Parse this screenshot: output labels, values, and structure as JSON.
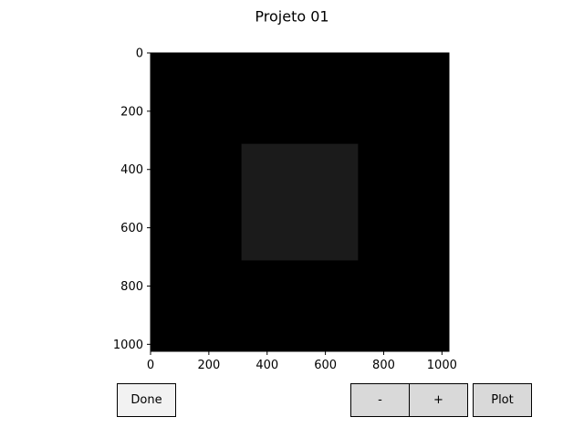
{
  "figure": {
    "title": "Projeto 01"
  },
  "chart_data": {
    "type": "heatmap",
    "title": "Projeto 01",
    "xlabel": "",
    "ylabel": "",
    "xlim": [
      0,
      1024
    ],
    "ylim": [
      1024,
      0
    ],
    "xticks": [
      0,
      200,
      400,
      600,
      800,
      1000
    ],
    "yticks": [
      0,
      200,
      400,
      600,
      800,
      1000
    ],
    "background_color": "#000000",
    "regions": [
      {
        "x": [
          312,
          712
        ],
        "y": [
          312,
          712
        ],
        "color": "#1b1b1b"
      }
    ]
  },
  "controls": {
    "done_label": "Done",
    "minus_label": "-",
    "plus_label": "+",
    "plot_label": "Plot"
  },
  "colors": {
    "done_button_bg": "#f2f2f2",
    "button_bg": "#d9d9d9"
  }
}
